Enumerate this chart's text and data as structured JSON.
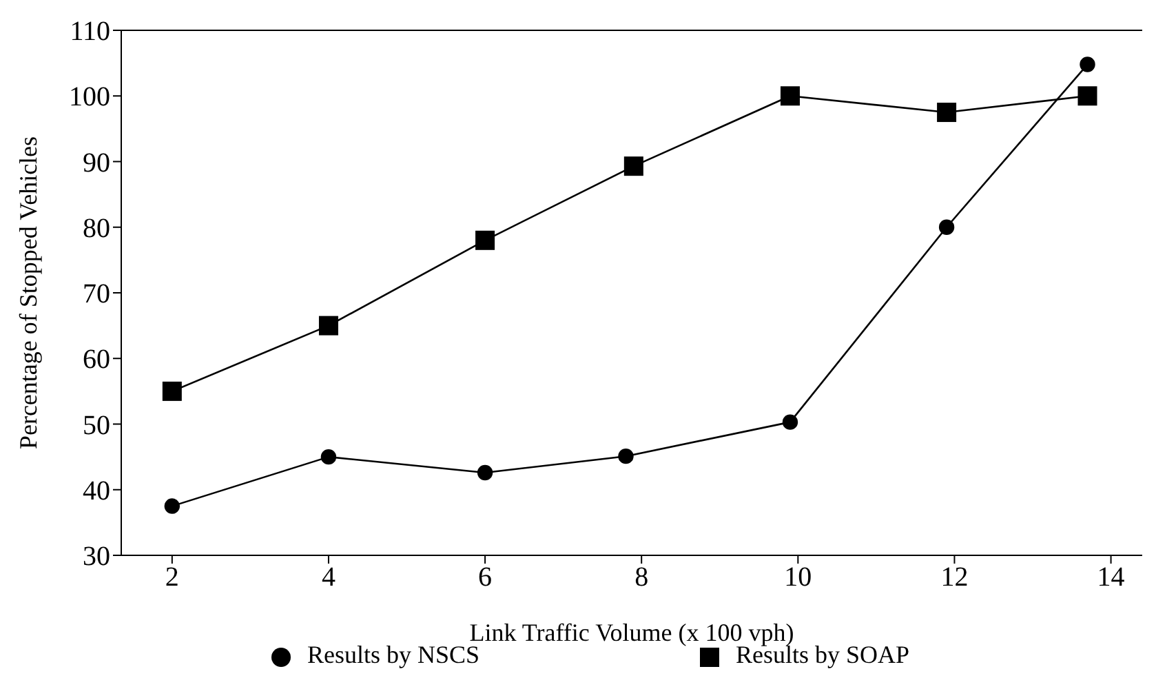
{
  "chart_data": {
    "type": "line",
    "xlabel": "Link Traffic Volume (x 100 vph)",
    "ylabel": "Percentage of Stopped Vehicles",
    "xlim": [
      1.35,
      14.4
    ],
    "xticks": [
      2,
      4,
      6,
      8,
      10,
      12,
      14
    ],
    "ylim": [
      30,
      110
    ],
    "yticks": [
      30,
      40,
      50,
      60,
      70,
      80,
      90,
      100,
      110
    ],
    "grid": false,
    "legend": "bottom",
    "line_style": "solid",
    "series": [
      {
        "name": "Results by SOAP",
        "color": "#000000",
        "marker": "square",
        "x": [
          2,
          4,
          6,
          7.9,
          9.9,
          11.9,
          13.7
        ],
        "values": [
          55,
          65,
          78,
          89.3,
          100,
          97.5,
          100
        ]
      },
      {
        "name": "Results by NSCS",
        "color": "#000000",
        "marker": "circle",
        "x": [
          2,
          4,
          6,
          7.8,
          9.9,
          11.9,
          13.7
        ],
        "values": [
          37.5,
          45,
          42.6,
          45.1,
          50.3,
          80,
          104.8
        ]
      }
    ]
  }
}
